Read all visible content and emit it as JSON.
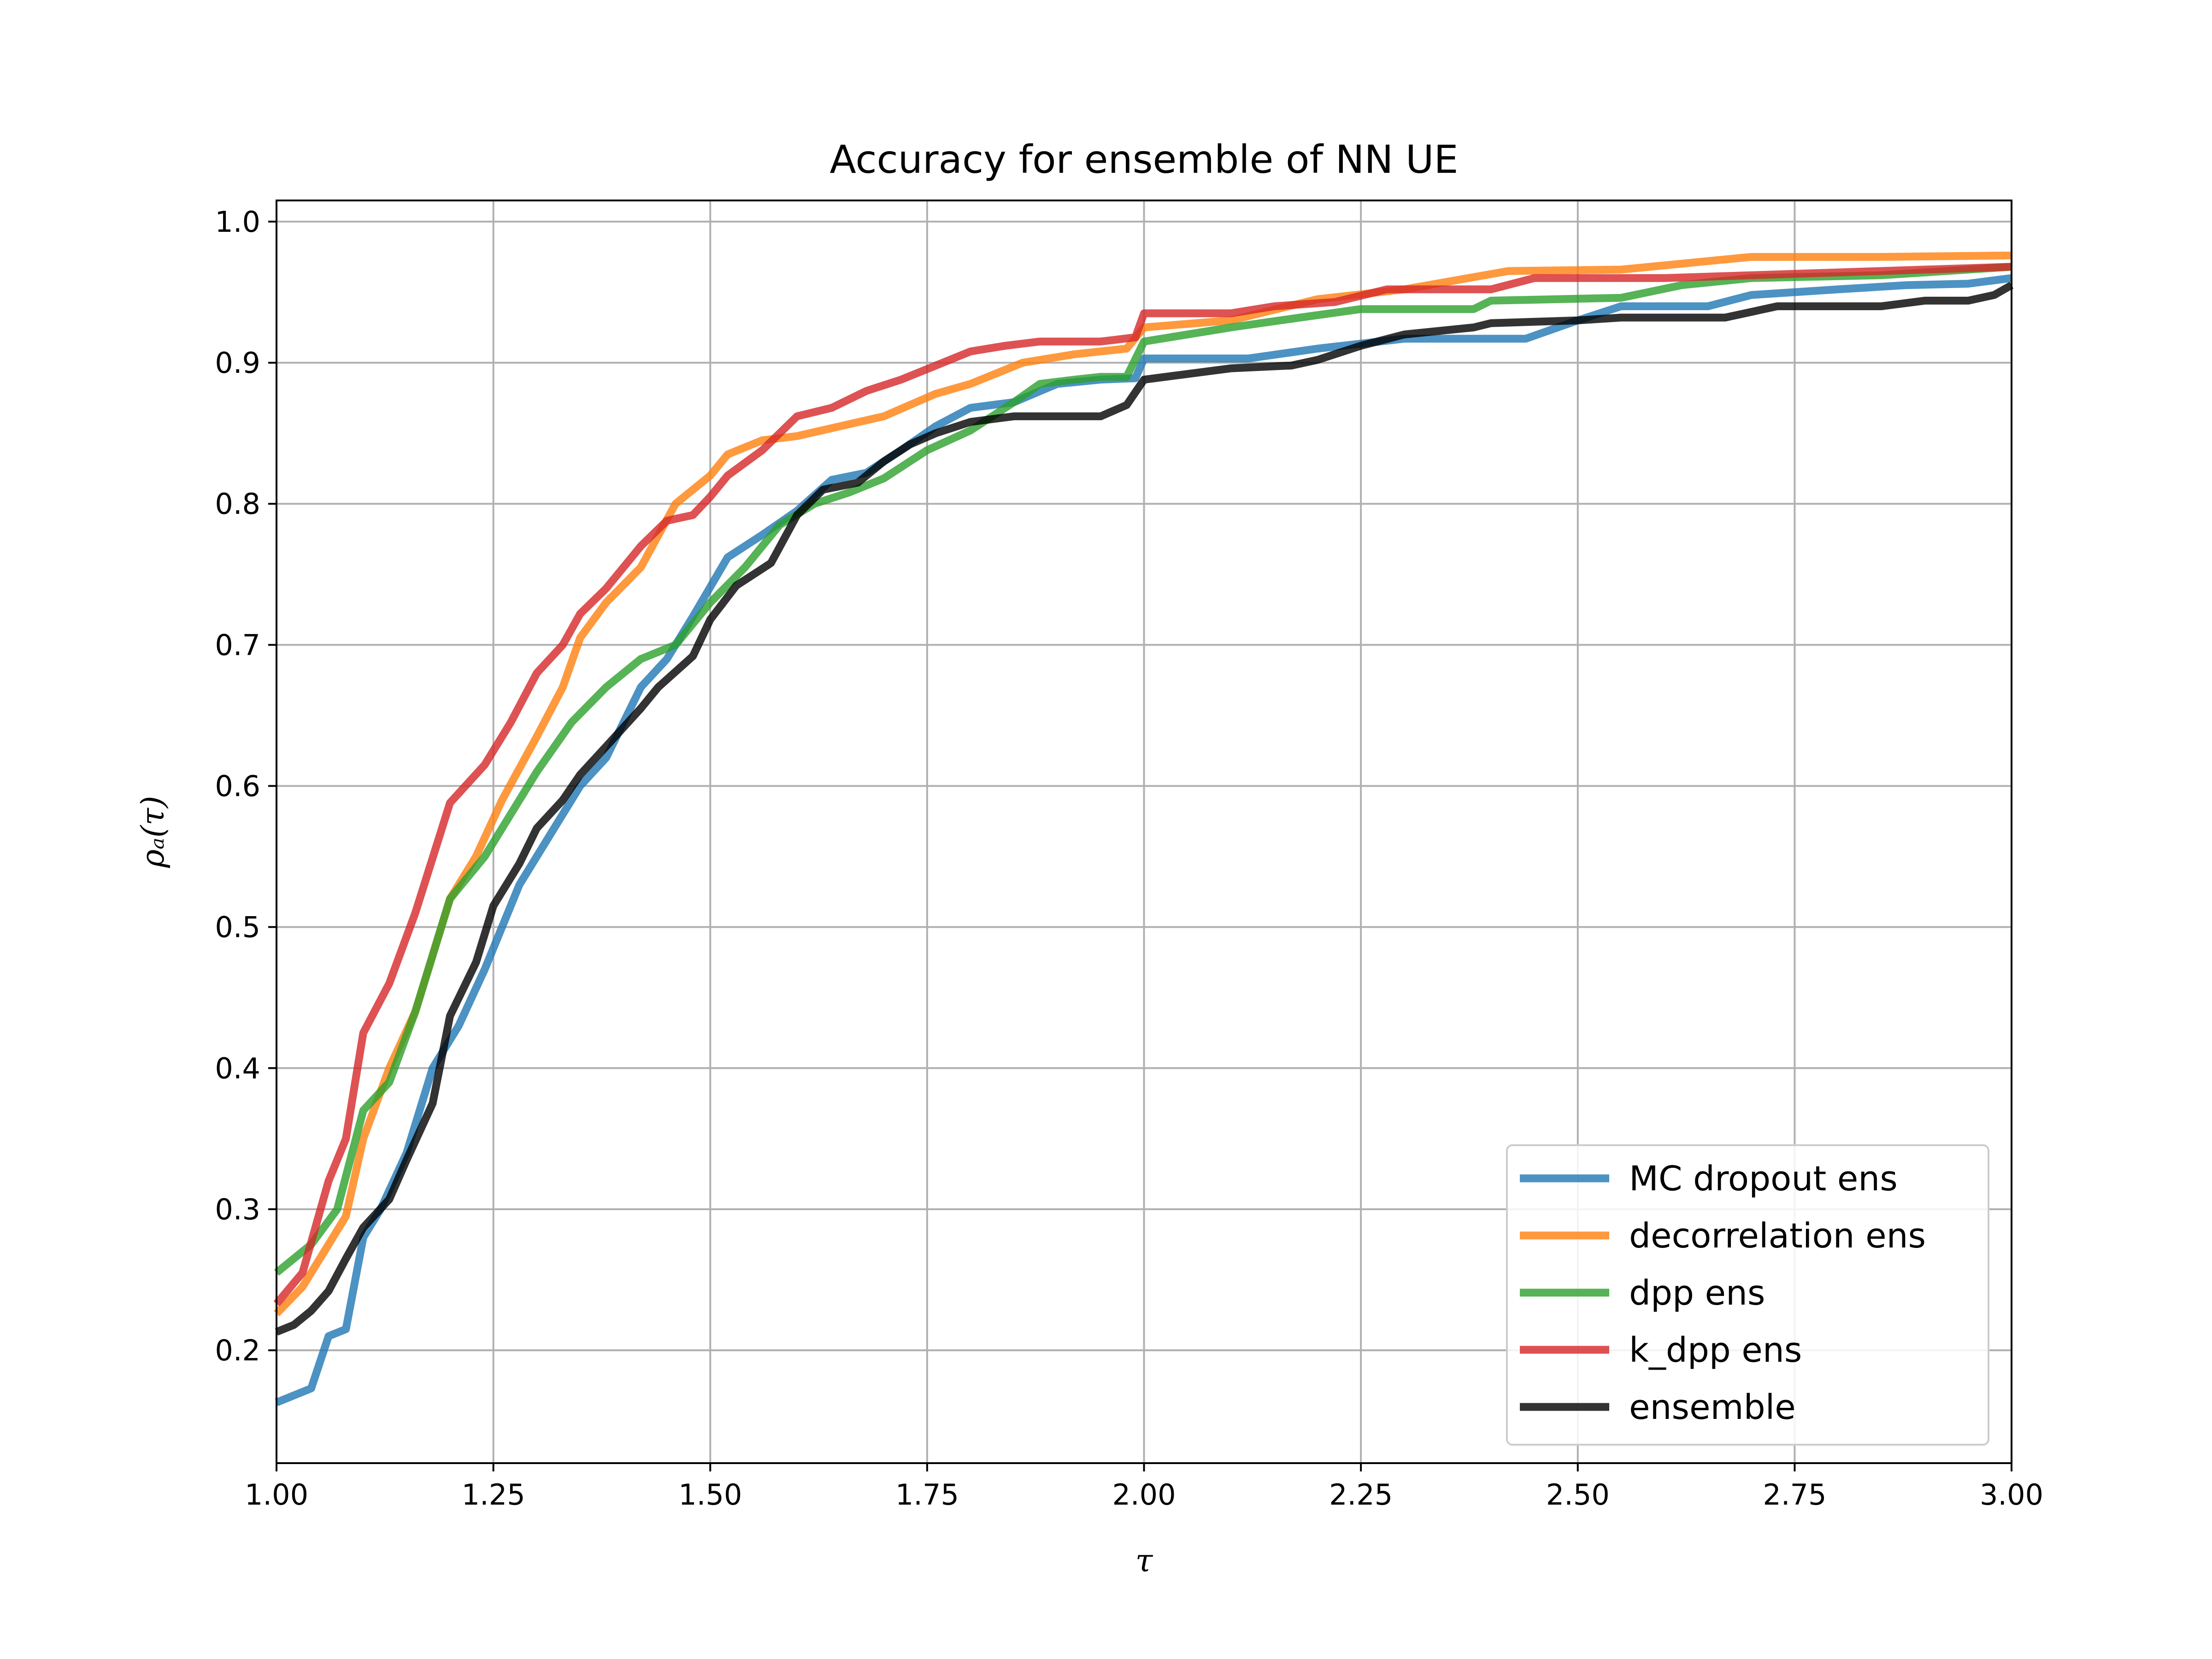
{
  "chart_data": {
    "type": "line",
    "title": "Accuracy for ensemble of NN UE",
    "xlabel": "τ",
    "ylabel": "ρₐ(τ)",
    "xlim": [
      1.0,
      3.0
    ],
    "ylim": [
      0.12,
      1.015
    ],
    "x_ticks": [
      1.0,
      1.25,
      1.5,
      1.75,
      2.0,
      2.25,
      2.5,
      2.75,
      3.0
    ],
    "x_tick_labels": [
      "1.00",
      "1.25",
      "1.50",
      "1.75",
      "2.00",
      "2.25",
      "2.50",
      "2.75",
      "3.00"
    ],
    "y_ticks": [
      0.2,
      0.3,
      0.4,
      0.5,
      0.6,
      0.7,
      0.8,
      0.9,
      1.0
    ],
    "y_tick_labels": [
      "0.2",
      "0.3",
      "0.4",
      "0.5",
      "0.6",
      "0.7",
      "0.8",
      "0.9",
      "1.0"
    ],
    "grid": true,
    "legend_position": "lower-right",
    "series": [
      {
        "name": "MC dropout ens",
        "color": "#1f77b4",
        "points": [
          [
            1.0,
            0.163
          ],
          [
            1.04,
            0.173
          ],
          [
            1.06,
            0.21
          ],
          [
            1.08,
            0.215
          ],
          [
            1.1,
            0.28
          ],
          [
            1.12,
            0.3
          ],
          [
            1.15,
            0.34
          ],
          [
            1.18,
            0.4
          ],
          [
            1.21,
            0.43
          ],
          [
            1.24,
            0.47
          ],
          [
            1.28,
            0.53
          ],
          [
            1.31,
            0.56
          ],
          [
            1.35,
            0.6
          ],
          [
            1.38,
            0.62
          ],
          [
            1.42,
            0.67
          ],
          [
            1.45,
            0.69
          ],
          [
            1.48,
            0.72
          ],
          [
            1.52,
            0.762
          ],
          [
            1.56,
            0.778
          ],
          [
            1.6,
            0.795
          ],
          [
            1.64,
            0.817
          ],
          [
            1.68,
            0.822
          ],
          [
            1.72,
            0.838
          ],
          [
            1.76,
            0.855
          ],
          [
            1.8,
            0.868
          ],
          [
            1.85,
            0.872
          ],
          [
            1.9,
            0.885
          ],
          [
            1.95,
            0.888
          ],
          [
            1.99,
            0.889
          ],
          [
            2.0,
            0.903
          ],
          [
            2.05,
            0.903
          ],
          [
            2.12,
            0.903
          ],
          [
            2.2,
            0.91
          ],
          [
            2.3,
            0.917
          ],
          [
            2.44,
            0.917
          ],
          [
            2.5,
            0.93
          ],
          [
            2.55,
            0.94
          ],
          [
            2.65,
            0.94
          ],
          [
            2.7,
            0.948
          ],
          [
            2.8,
            0.952
          ],
          [
            2.88,
            0.955
          ],
          [
            2.95,
            0.956
          ],
          [
            3.0,
            0.96
          ]
        ]
      },
      {
        "name": "decorrelation ens",
        "color": "#ff7f0e",
        "points": [
          [
            1.0,
            0.226
          ],
          [
            1.03,
            0.245
          ],
          [
            1.06,
            0.275
          ],
          [
            1.08,
            0.295
          ],
          [
            1.1,
            0.35
          ],
          [
            1.13,
            0.4
          ],
          [
            1.16,
            0.44
          ],
          [
            1.2,
            0.52
          ],
          [
            1.23,
            0.55
          ],
          [
            1.26,
            0.59
          ],
          [
            1.3,
            0.635
          ],
          [
            1.33,
            0.67
          ],
          [
            1.35,
            0.705
          ],
          [
            1.38,
            0.73
          ],
          [
            1.42,
            0.755
          ],
          [
            1.46,
            0.8
          ],
          [
            1.5,
            0.82
          ],
          [
            1.52,
            0.835
          ],
          [
            1.56,
            0.845
          ],
          [
            1.6,
            0.848
          ],
          [
            1.65,
            0.855
          ],
          [
            1.7,
            0.862
          ],
          [
            1.76,
            0.878
          ],
          [
            1.8,
            0.885
          ],
          [
            1.86,
            0.9
          ],
          [
            1.92,
            0.906
          ],
          [
            1.98,
            0.91
          ],
          [
            2.0,
            0.925
          ],
          [
            2.1,
            0.93
          ],
          [
            2.2,
            0.945
          ],
          [
            2.3,
            0.952
          ],
          [
            2.42,
            0.965
          ],
          [
            2.55,
            0.966
          ],
          [
            2.65,
            0.972
          ],
          [
            2.7,
            0.975
          ],
          [
            2.85,
            0.975
          ],
          [
            3.0,
            0.976
          ]
        ]
      },
      {
        "name": "dpp ens",
        "color": "#2ca02c",
        "points": [
          [
            1.0,
            0.255
          ],
          [
            1.04,
            0.275
          ],
          [
            1.07,
            0.3
          ],
          [
            1.1,
            0.37
          ],
          [
            1.13,
            0.39
          ],
          [
            1.16,
            0.44
          ],
          [
            1.2,
            0.52
          ],
          [
            1.24,
            0.55
          ],
          [
            1.27,
            0.58
          ],
          [
            1.3,
            0.61
          ],
          [
            1.34,
            0.645
          ],
          [
            1.38,
            0.67
          ],
          [
            1.42,
            0.69
          ],
          [
            1.46,
            0.7
          ],
          [
            1.5,
            0.73
          ],
          [
            1.54,
            0.755
          ],
          [
            1.58,
            0.785
          ],
          [
            1.62,
            0.8
          ],
          [
            1.66,
            0.808
          ],
          [
            1.7,
            0.818
          ],
          [
            1.75,
            0.838
          ],
          [
            1.8,
            0.852
          ],
          [
            1.85,
            0.872
          ],
          [
            1.88,
            0.885
          ],
          [
            1.92,
            0.888
          ],
          [
            1.95,
            0.89
          ],
          [
            1.98,
            0.89
          ],
          [
            2.0,
            0.915
          ],
          [
            2.05,
            0.92
          ],
          [
            2.1,
            0.925
          ],
          [
            2.18,
            0.932
          ],
          [
            2.25,
            0.938
          ],
          [
            2.38,
            0.938
          ],
          [
            2.4,
            0.944
          ],
          [
            2.55,
            0.946
          ],
          [
            2.62,
            0.955
          ],
          [
            2.7,
            0.96
          ],
          [
            2.85,
            0.962
          ],
          [
            3.0,
            0.968
          ]
        ]
      },
      {
        "name": "k_dpp ens",
        "color": "#d62728",
        "points": [
          [
            1.0,
            0.233
          ],
          [
            1.03,
            0.255
          ],
          [
            1.06,
            0.32
          ],
          [
            1.08,
            0.35
          ],
          [
            1.1,
            0.425
          ],
          [
            1.13,
            0.46
          ],
          [
            1.16,
            0.51
          ],
          [
            1.2,
            0.588
          ],
          [
            1.24,
            0.615
          ],
          [
            1.27,
            0.645
          ],
          [
            1.3,
            0.68
          ],
          [
            1.33,
            0.7
          ],
          [
            1.35,
            0.722
          ],
          [
            1.38,
            0.74
          ],
          [
            1.42,
            0.77
          ],
          [
            1.45,
            0.788
          ],
          [
            1.48,
            0.792
          ],
          [
            1.5,
            0.805
          ],
          [
            1.52,
            0.82
          ],
          [
            1.56,
            0.838
          ],
          [
            1.6,
            0.862
          ],
          [
            1.64,
            0.868
          ],
          [
            1.68,
            0.88
          ],
          [
            1.72,
            0.888
          ],
          [
            1.76,
            0.898
          ],
          [
            1.8,
            0.908
          ],
          [
            1.84,
            0.912
          ],
          [
            1.88,
            0.915
          ],
          [
            1.95,
            0.915
          ],
          [
            1.99,
            0.918
          ],
          [
            2.0,
            0.935
          ],
          [
            2.1,
            0.935
          ],
          [
            2.15,
            0.94
          ],
          [
            2.22,
            0.943
          ],
          [
            2.28,
            0.952
          ],
          [
            2.4,
            0.952
          ],
          [
            2.45,
            0.96
          ],
          [
            2.6,
            0.96
          ],
          [
            2.7,
            0.962
          ],
          [
            2.85,
            0.965
          ],
          [
            3.0,
            0.968
          ]
        ]
      },
      {
        "name": "ensemble",
        "color": "#000000",
        "points": [
          [
            1.0,
            0.213
          ],
          [
            1.02,
            0.218
          ],
          [
            1.04,
            0.228
          ],
          [
            1.06,
            0.242
          ],
          [
            1.08,
            0.265
          ],
          [
            1.1,
            0.287
          ],
          [
            1.13,
            0.307
          ],
          [
            1.15,
            0.335
          ],
          [
            1.18,
            0.375
          ],
          [
            1.2,
            0.437
          ],
          [
            1.23,
            0.475
          ],
          [
            1.25,
            0.515
          ],
          [
            1.28,
            0.545
          ],
          [
            1.3,
            0.57
          ],
          [
            1.33,
            0.59
          ],
          [
            1.35,
            0.608
          ],
          [
            1.38,
            0.628
          ],
          [
            1.42,
            0.655
          ],
          [
            1.44,
            0.67
          ],
          [
            1.48,
            0.692
          ],
          [
            1.5,
            0.718
          ],
          [
            1.53,
            0.742
          ],
          [
            1.57,
            0.758
          ],
          [
            1.6,
            0.792
          ],
          [
            1.63,
            0.81
          ],
          [
            1.67,
            0.815
          ],
          [
            1.7,
            0.83
          ],
          [
            1.73,
            0.842
          ],
          [
            1.76,
            0.85
          ],
          [
            1.8,
            0.858
          ],
          [
            1.85,
            0.862
          ],
          [
            1.95,
            0.862
          ],
          [
            1.98,
            0.87
          ],
          [
            2.0,
            0.888
          ],
          [
            2.05,
            0.892
          ],
          [
            2.1,
            0.896
          ],
          [
            2.17,
            0.898
          ],
          [
            2.2,
            0.902
          ],
          [
            2.25,
            0.912
          ],
          [
            2.3,
            0.92
          ],
          [
            2.38,
            0.925
          ],
          [
            2.4,
            0.928
          ],
          [
            2.5,
            0.93
          ],
          [
            2.55,
            0.932
          ],
          [
            2.67,
            0.932
          ],
          [
            2.73,
            0.94
          ],
          [
            2.85,
            0.94
          ],
          [
            2.9,
            0.944
          ],
          [
            2.95,
            0.944
          ],
          [
            2.98,
            0.948
          ],
          [
            3.0,
            0.955
          ]
        ]
      }
    ]
  }
}
